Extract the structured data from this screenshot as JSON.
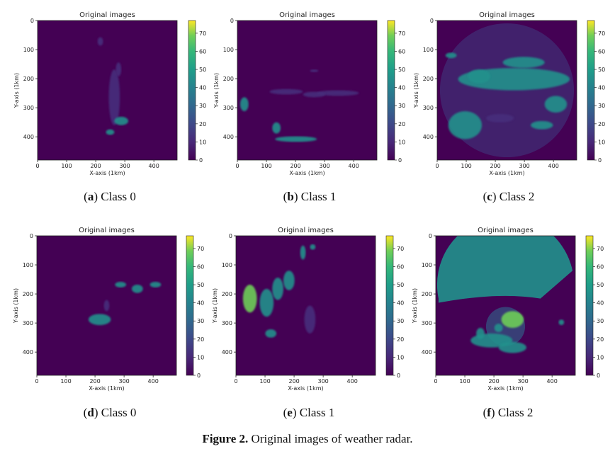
{
  "figure": {
    "label": "Figure 2.",
    "text": "Original images of weather radar."
  },
  "colorbar": {
    "ticks": [
      0,
      10,
      20,
      30,
      40,
      50,
      60,
      70
    ],
    "range": [
      0,
      77
    ]
  },
  "colors": {
    "background": "#440154",
    "low": "#472d7b",
    "mid": "#21918c",
    "high": "#fde725"
  },
  "chart_data": [
    {
      "type": "heatmap",
      "id": "a",
      "title": "Original images",
      "xlabel": "X-axis (1km)",
      "ylabel": "Y-axis (1km)",
      "xlim": [
        0,
        480
      ],
      "ylim": [
        480,
        0
      ],
      "xticks": [
        0,
        100,
        200,
        300,
        400
      ],
      "yticks": [
        0,
        100,
        200,
        300,
        400
      ],
      "caption_letter": "a",
      "caption_text": " Class 0"
    },
    {
      "type": "heatmap",
      "id": "b",
      "title": "Original images",
      "xlabel": "X-axis (1km)",
      "ylabel": "Y-axis (1km)",
      "xlim": [
        0,
        480
      ],
      "ylim": [
        480,
        0
      ],
      "xticks": [
        0,
        100,
        200,
        300,
        400
      ],
      "yticks": [
        0,
        100,
        200,
        300,
        400
      ],
      "caption_letter": "b",
      "caption_text": " Class 1"
    },
    {
      "type": "heatmap",
      "id": "c",
      "title": "Original images",
      "xlabel": "X-axis (1km)",
      "ylabel": "Y-axis (1km)",
      "xlim": [
        0,
        480
      ],
      "ylim": [
        480,
        0
      ],
      "xticks": [
        0,
        100,
        200,
        300,
        400
      ],
      "yticks": [
        0,
        100,
        200,
        300,
        400
      ],
      "caption_letter": "c",
      "caption_text": " Class 2"
    },
    {
      "type": "heatmap",
      "id": "d",
      "title": "Original images",
      "xlabel": "X-axis (1km)",
      "ylabel": "Y-axis (1km)",
      "xlim": [
        0,
        480
      ],
      "ylim": [
        480,
        0
      ],
      "xticks": [
        0,
        100,
        200,
        300,
        400
      ],
      "yticks": [
        0,
        100,
        200,
        300,
        400
      ],
      "caption_letter": "d",
      "caption_text": " Class 0"
    },
    {
      "type": "heatmap",
      "id": "e",
      "title": "Original images",
      "xlabel": "X-axis (1km)",
      "ylabel": "Y-axis (1km)",
      "xlim": [
        0,
        480
      ],
      "ylim": [
        480,
        0
      ],
      "xticks": [
        0,
        100,
        200,
        300,
        400
      ],
      "yticks": [
        0,
        100,
        200,
        300,
        400
      ],
      "caption_letter": "e",
      "caption_text": " Class 1"
    },
    {
      "type": "heatmap",
      "id": "f",
      "title": "Original images",
      "xlabel": "X-axis (1km)",
      "ylabel": "Y-axis (1km)",
      "xlim": [
        0,
        480
      ],
      "ylim": [
        480,
        0
      ],
      "xticks": [
        0,
        100,
        200,
        300,
        400
      ],
      "yticks": [
        0,
        100,
        200,
        300,
        400
      ],
      "caption_letter": "f",
      "caption_text": " Class 2"
    }
  ]
}
